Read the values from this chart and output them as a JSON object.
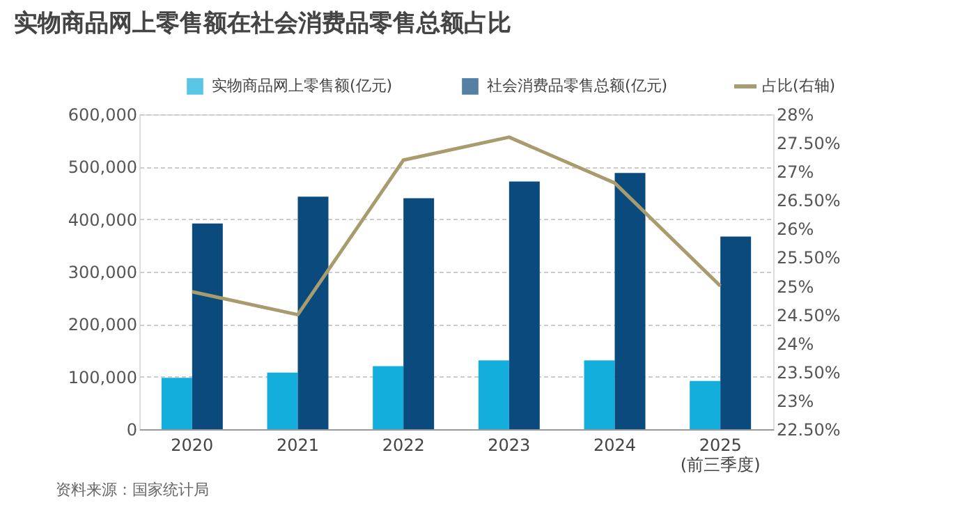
{
  "chart_data": {
    "type": "bar",
    "title": "实物商品网上零售额在社会消费品零售总额占比",
    "categories": [
      "2020",
      "2021",
      "2022",
      "2023",
      "2024",
      "2025\n(前三季度)"
    ],
    "series": [
      {
        "name": "实物商品网上零售额(亿元)",
        "type": "bar",
        "color": "#14aedc",
        "values": [
          98000,
          108000,
          120000,
          131000,
          131000,
          92000
        ]
      },
      {
        "name": "社会消费品零售总额(亿元)",
        "type": "bar",
        "color": "#0b4a7c",
        "values": [
          392000,
          443000,
          440000,
          472000,
          488000,
          367000
        ]
      },
      {
        "name": "占比(右轴)",
        "type": "line",
        "axis": "y2",
        "color": "#a89c6e",
        "values": [
          24.9,
          24.5,
          27.2,
          27.6,
          26.8,
          25.0
        ]
      }
    ],
    "ylim": [
      0,
      600000
    ],
    "yticks": [
      0,
      {
        "value": 100000,
        "label": "100,000"
      },
      {
        "value": 200000,
        "label": "200,000"
      },
      {
        "value": 300000,
        "label": "300,000"
      },
      {
        "value": 400000,
        "label": "400,000"
      },
      {
        "value": 500000,
        "label": "500,000"
      },
      {
        "value": 600000,
        "label": "600,000"
      }
    ],
    "y2lim": [
      22.5,
      28
    ],
    "y2ticks": [
      {
        "value": 22.5,
        "label": "22.50%"
      },
      {
        "value": 23,
        "label": "23%"
      },
      {
        "value": 23.5,
        "label": "23.50%"
      },
      {
        "value": 24,
        "label": "24%"
      },
      {
        "value": 24.5,
        "label": "24.50%"
      },
      {
        "value": 25,
        "label": "25%"
      },
      {
        "value": 25.5,
        "label": "25.50%"
      },
      {
        "value": 26,
        "label": "26%"
      },
      {
        "value": 26.5,
        "label": "26.50%"
      },
      {
        "value": 27,
        "label": "27%"
      },
      {
        "value": 27.5,
        "label": "27.50%"
      },
      {
        "value": 28,
        "label": "28%"
      }
    ],
    "grid": "y",
    "legend": "top",
    "line_style": "solid",
    "annotations": [
      "资料来源：国家统计局"
    ]
  }
}
